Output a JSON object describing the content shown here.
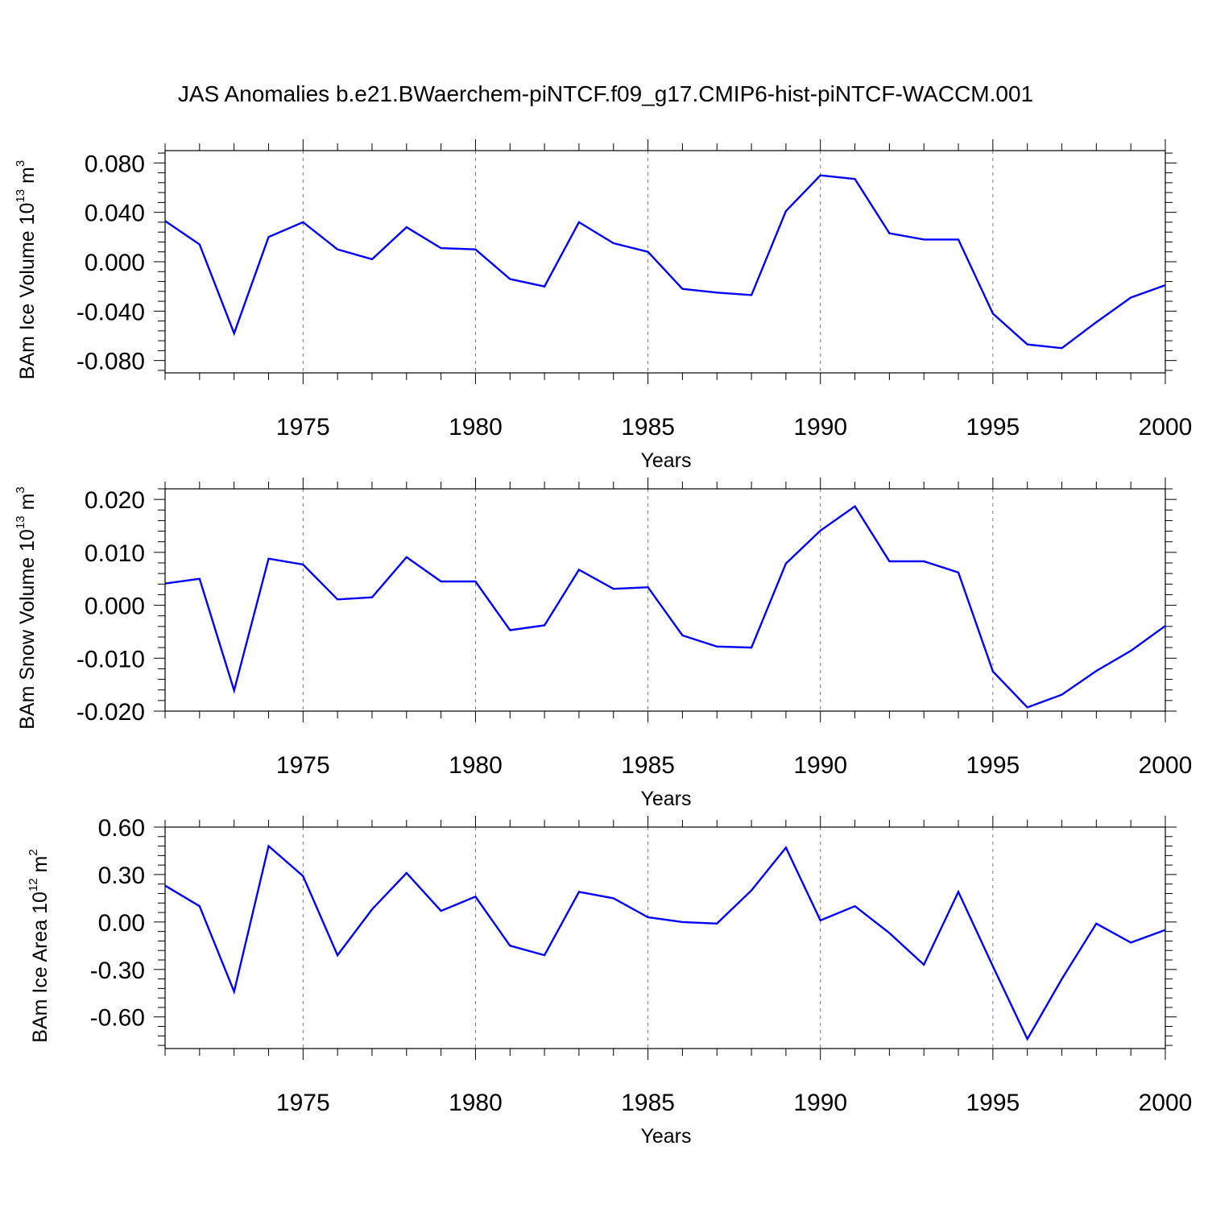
{
  "figure": {
    "title": "JAS Anomalies b.e21.BWaerchem-piNTCF.f09_g17.CMIP6-hist-piNTCF-WACCM.001",
    "line_color": "#0000ff"
  },
  "chart_data": [
    {
      "type": "line",
      "title": "",
      "xlabel": "Years",
      "ylabel": {
        "base": "BAm Ice Volume 10",
        "exponent": "13",
        "unit": " m",
        "unit_exponent": "3"
      },
      "xlim": [
        1971,
        2000
      ],
      "ylim": [
        -0.09,
        0.09
      ],
      "x_ticks": [
        1975,
        1980,
        1985,
        1990,
        1995,
        2000
      ],
      "y_ticks": [
        0.08,
        0.04,
        0.0,
        -0.04,
        -0.08
      ],
      "y_tick_labels": [
        "0.080",
        "0.040",
        "0.000",
        "-0.040",
        "-0.080"
      ],
      "grid": "vertical dashed at major x ticks",
      "series": [
        {
          "x": [
            1971,
            1972,
            1973,
            1974,
            1975,
            1976,
            1977,
            1978,
            1979,
            1980,
            1981,
            1982,
            1983,
            1984,
            1985,
            1986,
            1987,
            1988,
            1989,
            1990,
            1991,
            1992,
            1993,
            1994,
            1995,
            1996,
            1997,
            1998,
            1999,
            2000
          ],
          "values": [
            0.033,
            0.014,
            -0.058,
            0.02,
            0.032,
            0.01,
            0.002,
            0.028,
            0.011,
            0.01,
            -0.014,
            -0.02,
            0.032,
            0.015,
            0.008,
            -0.022,
            -0.025,
            -0.027,
            0.041,
            0.07,
            0.067,
            0.023,
            0.018,
            0.018,
            -0.042,
            -0.067,
            -0.07,
            -0.049,
            -0.029,
            -0.019
          ]
        }
      ]
    },
    {
      "type": "line",
      "title": "",
      "xlabel": "Years",
      "ylabel": {
        "base": "BAm Snow Volume 10",
        "exponent": "13",
        "unit": " m",
        "unit_exponent": "3"
      },
      "xlim": [
        1971,
        2000
      ],
      "ylim": [
        -0.02,
        0.022
      ],
      "x_ticks": [
        1975,
        1980,
        1985,
        1990,
        1995,
        2000
      ],
      "y_ticks": [
        0.02,
        0.01,
        0.0,
        -0.01,
        -0.02
      ],
      "y_tick_labels": [
        "0.020",
        "0.010",
        "0.000",
        "-0.010",
        "-0.020"
      ],
      "grid": "vertical dashed at major x ticks",
      "series": [
        {
          "x": [
            1971,
            1972,
            1973,
            1974,
            1975,
            1976,
            1977,
            1978,
            1979,
            1980,
            1981,
            1982,
            1983,
            1984,
            1985,
            1986,
            1987,
            1988,
            1989,
            1990,
            1991,
            1992,
            1993,
            1994,
            1995,
            1996,
            1997,
            1998,
            1999,
            2000
          ],
          "values": [
            0.0041,
            0.005,
            -0.0161,
            0.0088,
            0.0077,
            0.0011,
            0.0015,
            0.0091,
            0.0045,
            0.0045,
            -0.0047,
            -0.0038,
            0.0067,
            0.0031,
            0.0034,
            -0.0057,
            -0.0078,
            -0.008,
            0.0079,
            0.0141,
            0.0187,
            0.0083,
            0.0083,
            0.0062,
            -0.0125,
            -0.0193,
            -0.0169,
            -0.0124,
            -0.0086,
            -0.0039
          ]
        }
      ]
    },
    {
      "type": "line",
      "title": "",
      "xlabel": "Years",
      "ylabel": {
        "base": "BAm Ice Area 10",
        "exponent": "12",
        "unit": " m",
        "unit_exponent": "2"
      },
      "xlim": [
        1971,
        2000
      ],
      "ylim": [
        -0.8,
        0.6
      ],
      "x_ticks": [
        1975,
        1980,
        1985,
        1990,
        1995,
        2000
      ],
      "y_ticks": [
        0.6,
        0.3,
        0.0,
        -0.3,
        -0.6
      ],
      "y_tick_labels": [
        "0.60",
        "0.30",
        "0.00",
        "-0.30",
        "-0.60"
      ],
      "grid": "vertical dashed at major x ticks",
      "series": [
        {
          "x": [
            1971,
            1972,
            1973,
            1974,
            1975,
            1976,
            1977,
            1978,
            1979,
            1980,
            1981,
            1982,
            1983,
            1984,
            1985,
            1986,
            1987,
            1988,
            1989,
            1990,
            1991,
            1992,
            1993,
            1994,
            1995,
            1996,
            1997,
            1998,
            1999,
            2000
          ],
          "values": [
            0.23,
            0.1,
            -0.44,
            0.48,
            0.29,
            -0.21,
            0.08,
            0.31,
            0.07,
            0.16,
            -0.15,
            -0.21,
            0.19,
            0.15,
            0.03,
            0.0,
            -0.01,
            0.2,
            0.47,
            0.01,
            0.1,
            -0.07,
            -0.27,
            0.19,
            -0.28,
            -0.74,
            -0.36,
            -0.01,
            -0.13,
            -0.05
          ]
        }
      ]
    }
  ]
}
